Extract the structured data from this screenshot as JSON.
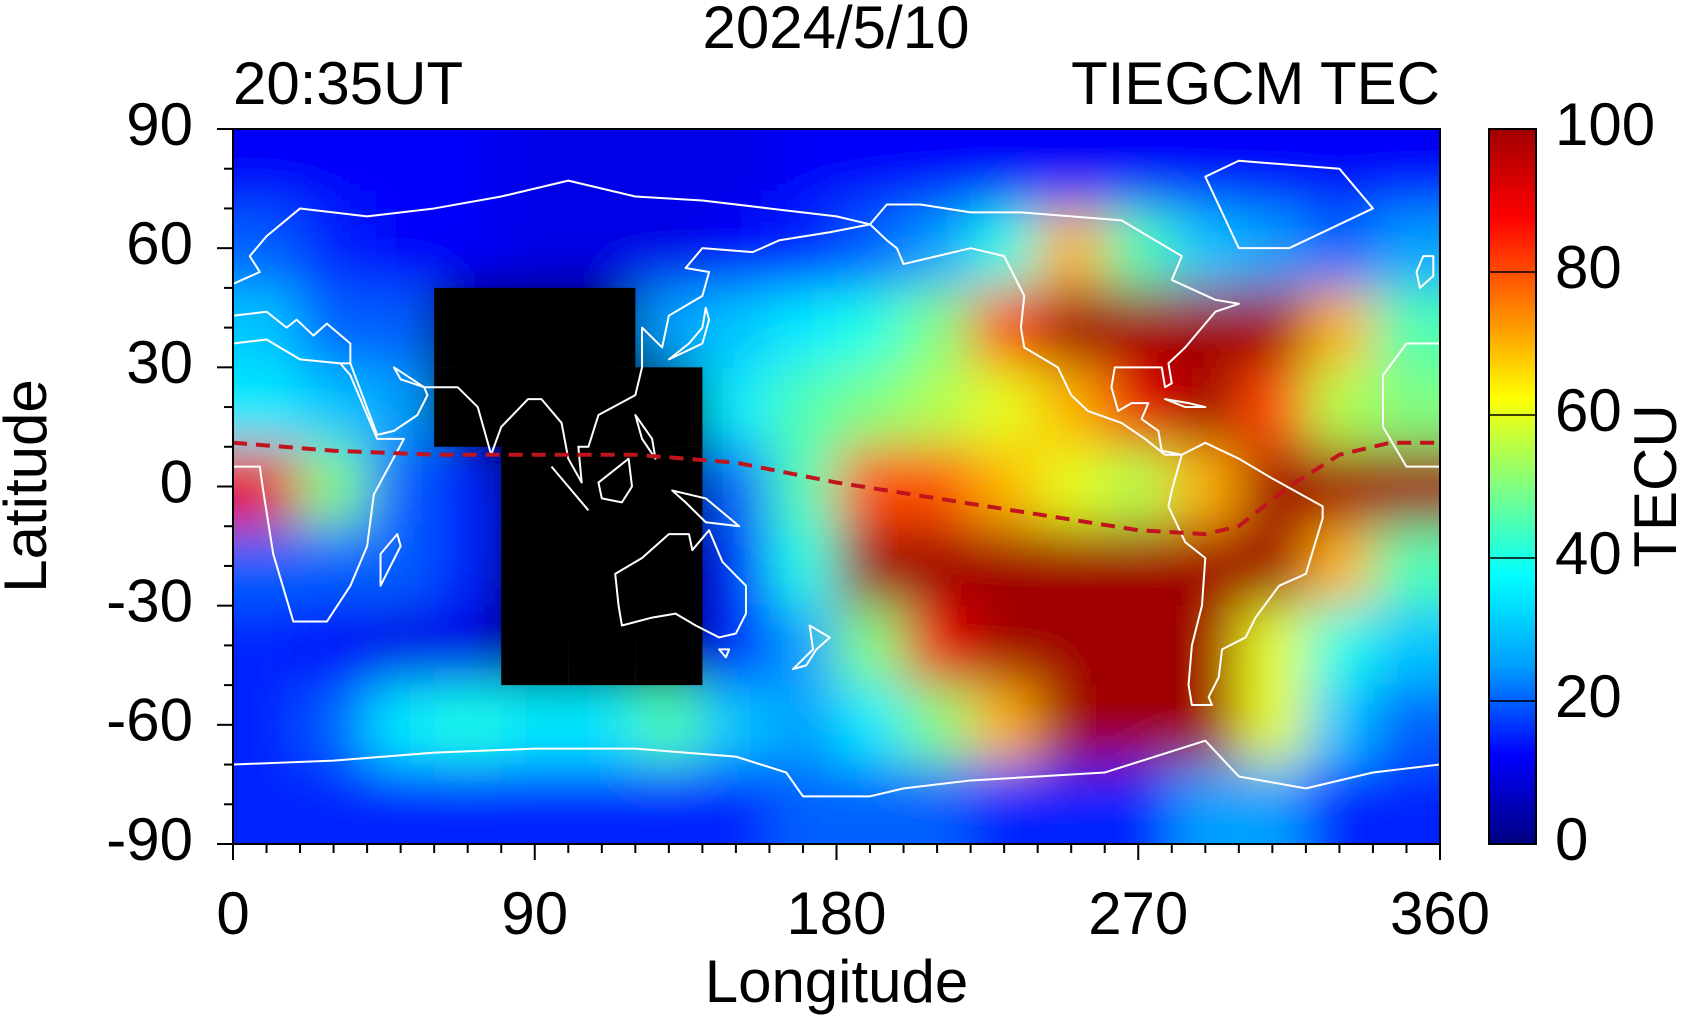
{
  "chart_data": {
    "type": "heatmap",
    "title": "2024/5/10",
    "subtitle_left": "20:35UT",
    "subtitle_right": "TIEGCM TEC",
    "x_label": "Longitude",
    "y_label": "Latitude",
    "colorbar_label": "TECU",
    "x": [
      10,
      30,
      50,
      70,
      90,
      110,
      130,
      150,
      170,
      190,
      210,
      230,
      250,
      270,
      290,
      310,
      330,
      350
    ],
    "y": [
      80,
      60,
      40,
      20,
      0,
      -20,
      -40,
      -60,
      -80
    ],
    "values": [
      [
        12,
        12,
        12,
        12,
        10,
        10,
        10,
        10,
        12,
        12,
        12,
        12,
        12,
        12,
        12,
        12,
        12,
        12
      ],
      [
        20,
        15,
        12,
        12,
        10,
        10,
        10,
        12,
        15,
        20,
        25,
        40,
        70,
        45,
        30,
        25,
        20,
        25
      ],
      [
        30,
        20,
        20,
        null,
        null,
        null,
        25,
        30,
        35,
        40,
        50,
        80,
        100,
        100,
        100,
        100,
        70,
        45
      ],
      [
        35,
        30,
        25,
        null,
        null,
        null,
        null,
        35,
        45,
        50,
        55,
        60,
        70,
        90,
        100,
        80,
        55,
        50
      ],
      [
        90,
        50,
        20,
        15,
        null,
        null,
        null,
        20,
        45,
        80,
        80,
        70,
        60,
        55,
        70,
        100,
        100,
        100
      ],
      [
        20,
        20,
        20,
        15,
        null,
        null,
        null,
        15,
        40,
        100,
        100,
        100,
        100,
        100,
        100,
        100,
        70,
        45
      ],
      [
        15,
        12,
        10,
        10,
        null,
        null,
        null,
        15,
        25,
        50,
        90,
        100,
        100,
        100,
        100,
        60,
        40,
        30
      ],
      [
        15,
        20,
        35,
        40,
        35,
        35,
        45,
        30,
        25,
        35,
        50,
        70,
        100,
        100,
        100,
        60,
        30,
        20
      ],
      [
        15,
        15,
        15,
        15,
        15,
        15,
        15,
        15,
        20,
        20,
        20,
        15,
        15,
        15,
        25,
        25,
        15,
        15
      ]
    ],
    "xlim": [
      0,
      360
    ],
    "ylim": [
      -90,
      90
    ],
    "xticks": [
      0,
      90,
      180,
      270,
      360
    ],
    "yticks": [
      -90,
      -60,
      -30,
      0,
      30,
      60,
      90
    ],
    "clim": [
      0,
      100
    ],
    "cticks": [
      0,
      20,
      40,
      60,
      80,
      100
    ],
    "colors": [
      "#000080",
      "#0000ff",
      "#00a0ff",
      "#00ffff",
      "#80ff80",
      "#ffff00",
      "#ff8000",
      "#ff0000",
      "#a00000"
    ],
    "null_color": "#000000"
  }
}
